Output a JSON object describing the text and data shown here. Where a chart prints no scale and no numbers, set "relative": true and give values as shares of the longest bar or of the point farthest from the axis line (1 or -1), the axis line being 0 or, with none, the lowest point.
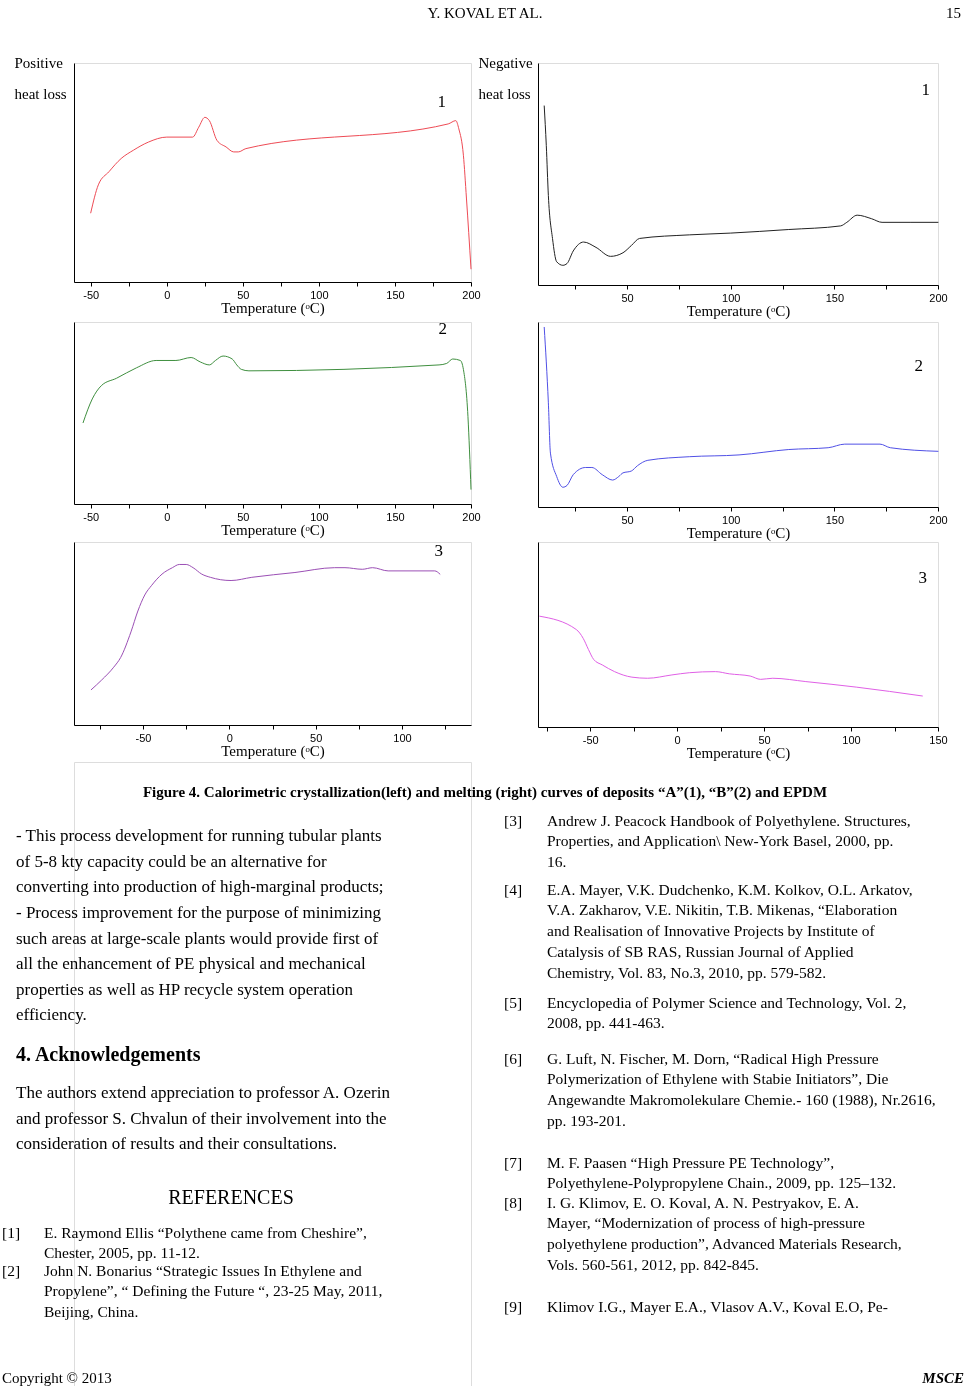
{
  "chart_data": [
    {
      "type": "other",
      "annotations": [
        "Y. KOVAL ET AL.",
        "15"
      ]
    },
    {
      "type": "line",
      "ylabel": "Positive heat loss",
      "xlabel": "Temperature (ᵒC)",
      "relative": true,
      "tick_labels": "x",
      "annotations": [
        "1"
      ],
      "xlim": [
        -61,
        200
      ],
      "xticks": [
        -50,
        {
          "value": -25,
          "label": null
        },
        0,
        {
          "value": 25,
          "label": null
        },
        50,
        {
          "value": 75,
          "label": null
        },
        100,
        {
          "value": 125,
          "label": null
        },
        150,
        {
          "value": 175,
          "label": null
        },
        200
      ],
      "x": [
        -50,
        -45,
        -38,
        -30,
        -22,
        -12,
        0,
        17,
        21,
        25,
        28,
        33,
        39,
        44,
        47,
        52,
        185,
        190,
        192,
        195,
        197,
        200
      ],
      "series": [
        {
          "color": "#ee4b55",
          "values": [
            0.42,
            0.59,
            0.67,
            0.75,
            0.8,
            0.85,
            0.88,
            0.88,
            0.94,
            1,
            0.98,
            0.86,
            0.82,
            0.79,
            0.79,
            0.81,
            0.96,
            0.98,
            0.93,
            0.77,
            0.51,
            0.08
          ]
        }
      ]
    },
    {
      "type": "line",
      "ylabel": "Negative heat loss",
      "xlabel": "Temperature (ᵒC)",
      "relative": true,
      "tick_labels": "x",
      "annotations": [
        "1"
      ],
      "xlim": [
        7,
        200
      ],
      "xticks": [
        {
          "value": 25,
          "label": null
        },
        50,
        {
          "value": 75,
          "label": null
        },
        100,
        {
          "value": 125,
          "label": null
        },
        150,
        {
          "value": 175,
          "label": null
        },
        200
      ],
      "x": [
        10,
        11,
        12,
        14,
        16,
        19,
        21,
        24,
        29,
        35,
        42,
        48,
        52,
        56,
        80,
        100,
        128,
        153,
        156,
        161,
        168,
        173,
        200
      ],
      "series": [
        {
          "color": "#222222",
          "values": [
            1,
            0.78,
            0.5,
            0.26,
            0.13,
            0.11,
            0.12,
            0.19,
            0.24,
            0.21,
            0.16,
            0.18,
            0.22,
            0.26,
            0.28,
            0.29,
            0.31,
            0.33,
            0.35,
            0.39,
            0.37,
            0.35,
            0.35
          ]
        }
      ]
    },
    {
      "type": "line",
      "xlabel": "Temperature (ᵒC)",
      "relative": true,
      "tick_labels": "x",
      "annotations": [
        "2"
      ],
      "xlim": [
        -61,
        200
      ],
      "xticks": [
        -50,
        {
          "value": -25,
          "label": null
        },
        0,
        {
          "value": 25,
          "label": null
        },
        50,
        {
          "value": 75,
          "label": null
        },
        100,
        {
          "value": 125,
          "label": null
        },
        150,
        {
          "value": 175,
          "label": null
        },
        200
      ],
      "x": [
        -55,
        -49,
        -43,
        -33,
        -20,
        -7,
        6,
        16,
        22,
        28,
        32,
        37,
        43,
        46,
        49,
        54,
        179,
        184,
        188,
        193,
        195,
        198,
        200
      ],
      "series": [
        {
          "color": "#3f8f3f",
          "values": [
            0.55,
            0.71,
            0.8,
            0.85,
            0.92,
            0.97,
            0.97,
            0.99,
            0.96,
            0.94,
            0.97,
            1,
            0.98,
            0.94,
            0.91,
            0.9,
            0.94,
            0.95,
            0.98,
            0.97,
            0.91,
            0.59,
            0.1
          ]
        }
      ]
    },
    {
      "type": "line",
      "xlabel": "Temperature (ᵒC)",
      "relative": true,
      "tick_labels": "x",
      "annotations": [
        "2"
      ],
      "xlim": [
        7,
        200
      ],
      "xticks": [
        {
          "value": 25,
          "label": null
        },
        50,
        {
          "value": 75,
          "label": null
        },
        100,
        {
          "value": 125,
          "label": null
        },
        150,
        {
          "value": 175,
          "label": null
        },
        200
      ],
      "x": [
        10,
        12,
        13,
        16,
        19,
        21,
        24,
        30,
        33,
        38,
        43,
        46,
        48,
        52,
        55,
        60,
        80,
        104,
        128,
        147,
        155,
        172,
        177,
        200
      ],
      "series": [
        {
          "color": "#5050e6",
          "values": [
            1,
            0.58,
            0.3,
            0.17,
            0.11,
            0.12,
            0.18,
            0.22,
            0.22,
            0.18,
            0.15,
            0.17,
            0.19,
            0.2,
            0.23,
            0.26,
            0.28,
            0.29,
            0.32,
            0.33,
            0.35,
            0.35,
            0.33,
            0.31
          ]
        }
      ]
    },
    {
      "type": "line",
      "xlabel": "Temperature (ᵒC)",
      "relative": true,
      "tick_labels": "x",
      "annotations": [
        "3"
      ],
      "xlim": [
        -90,
        140
      ],
      "xticks": [
        {
          "value": -75,
          "label": null
        },
        -50,
        {
          "value": -25,
          "label": null
        },
        0,
        {
          "value": 25,
          "label": null
        },
        50,
        {
          "value": 75,
          "label": null
        },
        100,
        {
          "value": 125,
          "label": null
        }
      ],
      "x": [
        -80,
        -74,
        -67,
        -63,
        -57,
        -53,
        -49,
        -45,
        -39,
        -33,
        -29,
        -25,
        -21,
        -16,
        -11,
        1,
        13,
        38,
        61,
        67,
        77,
        83,
        92,
        119,
        122
      ],
      "series": [
        {
          "color": "#9b4fb5",
          "values": [
            0.22,
            0.28,
            0.36,
            0.42,
            0.58,
            0.71,
            0.81,
            0.87,
            0.94,
            0.98,
            1,
            1,
            0.98,
            0.94,
            0.92,
            0.9,
            0.92,
            0.95,
            0.98,
            0.98,
            0.97,
            0.98,
            0.96,
            0.96,
            0.94
          ]
        }
      ]
    },
    {
      "type": "line",
      "xlabel": "Temperature (ᵒC)",
      "relative": true,
      "tick_labels": "x",
      "annotations": [
        "3"
      ],
      "xlim": [
        -80,
        150
      ],
      "xticks": [
        {
          "value": -75,
          "label": null
        },
        -50,
        {
          "value": -25,
          "label": null
        },
        0,
        {
          "value": 25,
          "label": null
        },
        50,
        {
          "value": 75,
          "label": null
        },
        100,
        {
          "value": 125,
          "label": null
        },
        150
      ],
      "x": [
        -79,
        -58,
        -54,
        -51,
        -48,
        -43,
        -36,
        -26,
        -17,
        -3,
        7,
        22,
        30,
        42,
        48,
        55,
        74,
        103,
        141
      ],
      "series": [
        {
          "color": "#e060e6",
          "values": [
            1,
            0.88,
            0.8,
            0.7,
            0.61,
            0.56,
            0.5,
            0.45,
            0.44,
            0.47,
            0.49,
            0.5,
            0.48,
            0.46,
            0.43,
            0.44,
            0.41,
            0.36,
            0.28
          ]
        }
      ]
    },
    {
      "type": "other",
      "annotations": [
        "Figure 4. Calorimetric crystallization(left) and melting (right) curves of deposits “A”(1), “B”(2) and EPDM",
        "- This process development for running tubular plants of 5-8 kty capacity could be an alternative for converting into production of high-marginal products;",
        "- Process improvement for the purpose of minimizing such areas at large-scale plants would provide first of all the enhancement of PE physical and mechanical properties as well as HP recycle system operation efficiency.",
        "4. Acknowledgements",
        "The authors extend appreciation to professor A. Ozerin and professor S. Chvalun of their involvement into the consideration of results and their consultations.",
        "REFERENCES",
        "[1] E. Raymond Ellis “Polythene came from Cheshire”, Chester, 2005, pp. 11-12.",
        "[2] John N. Bonarius “Strategic Issues In Ethylene and Propylene”, “ Defining the Future “, 23-25 May, 2011, Beijing, China.",
        "[3] Andrew J. Peacock Handbook of Polyethylene. Structures, Properties, and Application\\ New-York Basel, 2000, pp. 16.",
        "[4] E.A. Mayer, V.K. Dudchenko, K.M. Kolkov, O.L. Arkatov, V.A. Zakharov, V.E. Nikitin, T.B. Mikenas, “Elaboration and Realisation of Innovative Projects by Institute of Catalysis of SB RAS, Russian Journal of Applied Chemistry, Vol. 83, No.3, 2010, pp. 579-582.",
        "[5] Encyclopedia of Polymer Science and Technology, Vol. 2, 2008, pp. 441-463.",
        "[6] G. Luft, N. Fischer, M. Dorn, “Radical High Pressure Polymerization of Ethylene with Stabie Initiators”, Die Angewandte Makromolekulare Chemie.- 160 (1988), Nr.2616, pp. 193-201.",
        "[7] M. F. Paasen “High Pressure PE Technology”, Polyethylene-Polypropylene Chain., 2009, pp. 125–132.",
        "[8] I. G. Klimov, E. O. Koval, A. N. Pestryakov, E. A. Mayer, “Modernization of process of high-pressure polyethylene production”, Advanced Materials Research, Vols. 560-561, 2012, pp. 842-845.",
        "[9] Klimov I.G., Mayer E.A., Vlasov A.V., Koval E.O, Pe-",
        "Copyright © 2013",
        "MSCE"
      ]
    }
  ]
}
